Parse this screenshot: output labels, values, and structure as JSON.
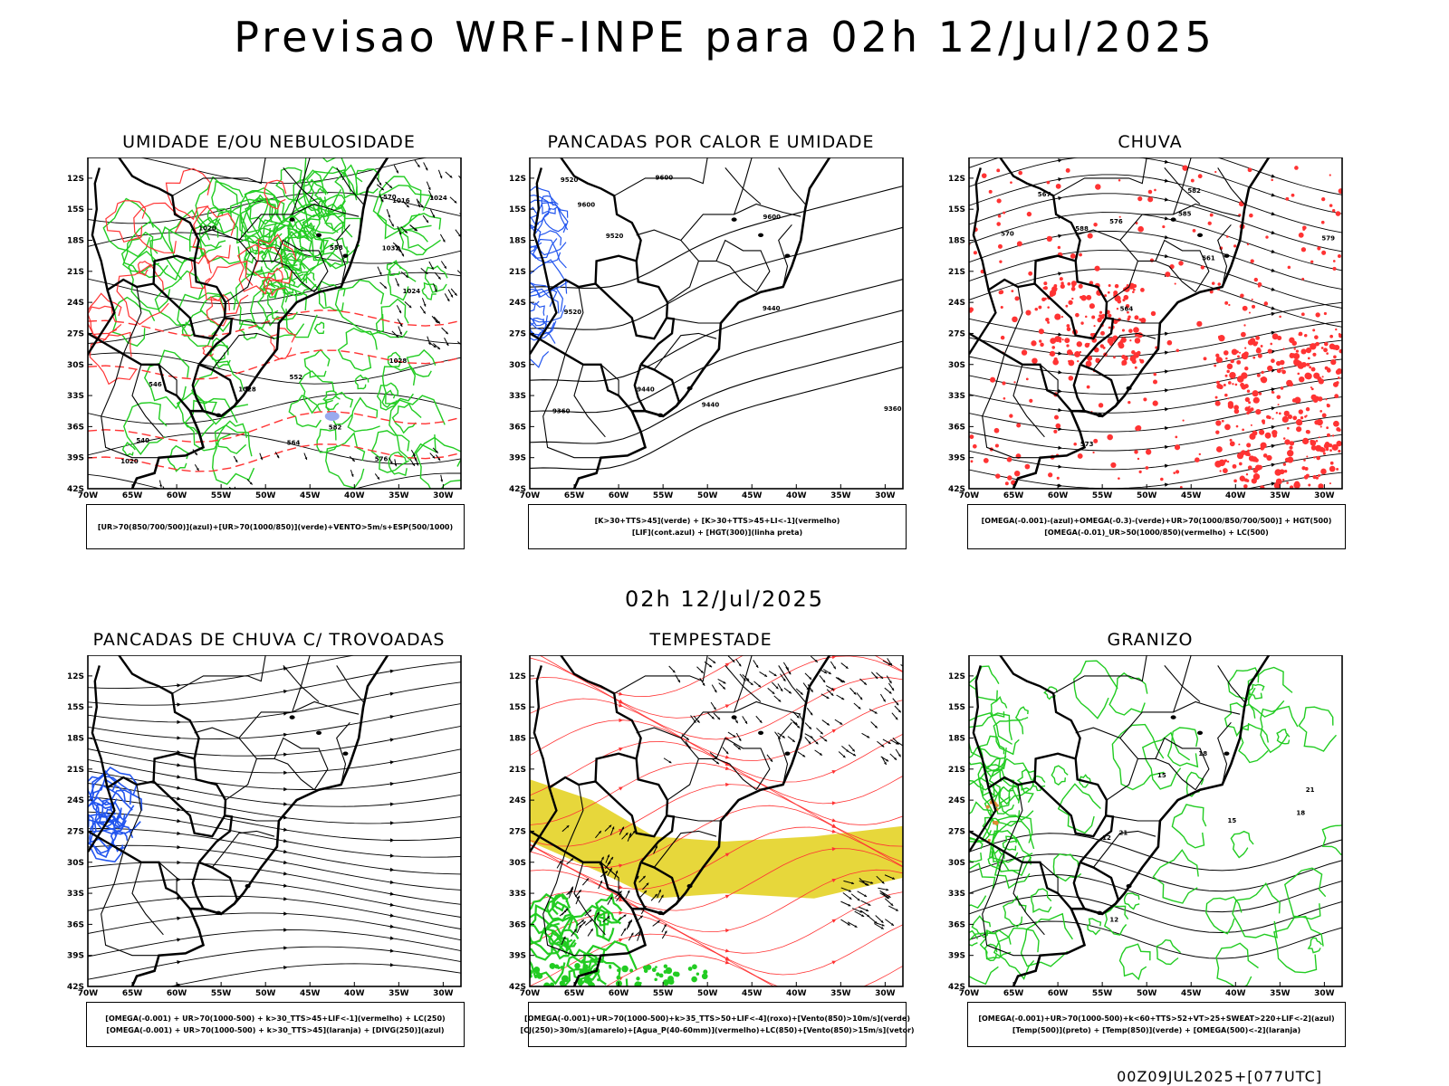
{
  "header": {
    "title": "Previsao WRF-INPE  para 02h 12/Jul/2025",
    "mid_date": "02h 12/Jul/2025",
    "run_info": "00Z09JUL2025+[077UTC]"
  },
  "axes": {
    "lat_labels": [
      "12S",
      "15S",
      "18S",
      "21S",
      "24S",
      "27S",
      "30S",
      "33S",
      "36S",
      "39S",
      "42S"
    ],
    "lon_labels": [
      "70W",
      "65W",
      "60W",
      "55W",
      "50W",
      "45W",
      "40W",
      "35W",
      "30W"
    ]
  },
  "colors": {
    "green": "#22cc22",
    "red": "#ff3333",
    "blue": "#2255ee",
    "yellow": "#e6d530",
    "lightblue": "#99aaee"
  },
  "panels": [
    {
      "title": "UMIDADE E/OU NEBULOSIDADE",
      "legend": [
        "[UR>70(850/700/500)](azul)+[UR>70(1000/850)](verde)+VENTO>5m/s+ESP(500/1000)"
      ],
      "contour_labels": [
        "1016",
        "1020",
        "1024",
        "1028",
        "1032",
        "564",
        "570",
        "576",
        "582",
        "546",
        "552",
        "558",
        "540",
        "1028",
        "1024",
        "1020"
      ]
    },
    {
      "title": "PANCADAS POR CALOR E UMIDADE",
      "legend": [
        "[K>30+TTS>45](verde) + [K>30+TTS>45+LI<-1](vermelho)",
        "[LIF](cont.azul) + [HGT(300)](linha preta)"
      ],
      "contour_labels": [
        "9600",
        "9520",
        "9440",
        "9360",
        "9600",
        "9520",
        "9440",
        "9360",
        "9600",
        "9520",
        "9440"
      ]
    },
    {
      "title": "CHUVA",
      "legend": [
        "[OMEGA(-0.001)-(azul)+OMEGA(-0.3)-(verde)+UR>70(1000/850/700/500)] + HGT(500)",
        "[OMEGA(-0.01)_UR>50(1000/850)(vermelho) + LC(500)"
      ],
      "contour_labels": [
        "585",
        "582",
        "579",
        "576",
        "573",
        "570",
        "567",
        "564",
        "561",
        "588"
      ]
    },
    {
      "title": "PANCADAS DE CHUVA C/ TROVOADAS",
      "legend": [
        "[OMEGA(-0.001) + UR>70(1000-500) + k>30_TTS>45+LIF<-1](vermelho) + LC(250)",
        "[OMEGA(-0.001) + UR>70(1000-500) + k>30_TTS>45](laranja) + [DIVG(250)](azul)"
      ],
      "contour_labels": []
    },
    {
      "title": "TEMPESTADE",
      "legend": [
        "[OMEGA(-0.001)+UR>70(1000-500)+k>35_TTS>50+LIF<-4](roxo)+[Vento(850)>10m/s](verde)",
        "[CJ(250)>30m/s](amarelo)+[Agua_P(40-60mm)](vermelho)+LC(850)+[Vento(850)>15m/s](vetor)"
      ],
      "contour_labels": []
    },
    {
      "title": "GRANIZO",
      "legend": [
        "[OMEGA(-0.001)+UR>70(1000-500)+k<60+TTS>52+VT>25+SWEAT>220+LIF<-2](azul)",
        "[Temp(500)](preto) + [Temp(850)](verde) + [OMEGA(500)<-2](laranja)"
      ],
      "contour_labels": [
        "12",
        "15",
        "18",
        "21",
        "12",
        "15",
        "18",
        "21"
      ]
    }
  ]
}
